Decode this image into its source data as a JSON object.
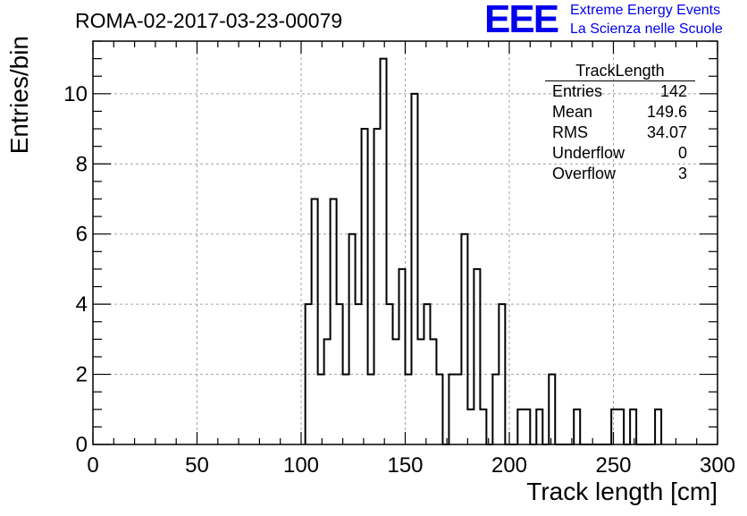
{
  "header": {
    "run_title": "ROMA-02-2017-03-23-00079",
    "logo_text": "EEE",
    "logo_line1": "Extreme Energy Events",
    "logo_line2": "La Scienza nelle Scuole"
  },
  "stats": {
    "title": "TrackLength",
    "rows": [
      {
        "label": "Entries",
        "value": "142"
      },
      {
        "label": "Mean",
        "value": "149.6"
      },
      {
        "label": "RMS",
        "value": "34.07"
      },
      {
        "label": "Underflow",
        "value": "0"
      },
      {
        "label": "Overflow",
        "value": "3"
      }
    ]
  },
  "chart_data": {
    "type": "bar",
    "style": "step-histogram",
    "xlabel": "Track length [cm]",
    "ylabel": "Entries/bin",
    "xlim": [
      0,
      300
    ],
    "ylim": [
      0,
      11.5
    ],
    "x_ticks": [
      0,
      50,
      100,
      150,
      200,
      250,
      300
    ],
    "y_ticks": [
      0,
      2,
      4,
      6,
      8,
      10
    ],
    "grid": true,
    "bin_width": 3,
    "bins": [
      {
        "x": 102,
        "count": 4
      },
      {
        "x": 105,
        "count": 7
      },
      {
        "x": 108,
        "count": 2
      },
      {
        "x": 111,
        "count": 3
      },
      {
        "x": 114,
        "count": 7
      },
      {
        "x": 117,
        "count": 4
      },
      {
        "x": 120,
        "count": 2
      },
      {
        "x": 123,
        "count": 6
      },
      {
        "x": 126,
        "count": 4
      },
      {
        "x": 129,
        "count": 9
      },
      {
        "x": 132,
        "count": 2
      },
      {
        "x": 135,
        "count": 9
      },
      {
        "x": 138,
        "count": 11
      },
      {
        "x": 141,
        "count": 4
      },
      {
        "x": 144,
        "count": 3
      },
      {
        "x": 147,
        "count": 5
      },
      {
        "x": 150,
        "count": 2
      },
      {
        "x": 153,
        "count": 10
      },
      {
        "x": 156,
        "count": 3
      },
      {
        "x": 159,
        "count": 4
      },
      {
        "x": 162,
        "count": 3
      },
      {
        "x": 165,
        "count": 2
      },
      {
        "x": 168,
        "count": 0
      },
      {
        "x": 171,
        "count": 2
      },
      {
        "x": 174,
        "count": 2
      },
      {
        "x": 177,
        "count": 6
      },
      {
        "x": 180,
        "count": 1
      },
      {
        "x": 183,
        "count": 5
      },
      {
        "x": 186,
        "count": 1
      },
      {
        "x": 189,
        "count": 0
      },
      {
        "x": 192,
        "count": 2
      },
      {
        "x": 195,
        "count": 4
      },
      {
        "x": 198,
        "count": 0
      },
      {
        "x": 201,
        "count": 0
      },
      {
        "x": 204,
        "count": 1
      },
      {
        "x": 207,
        "count": 1
      },
      {
        "x": 210,
        "count": 0
      },
      {
        "x": 213,
        "count": 1
      },
      {
        "x": 216,
        "count": 0
      },
      {
        "x": 219,
        "count": 2
      },
      {
        "x": 222,
        "count": 0
      },
      {
        "x": 225,
        "count": 0
      },
      {
        "x": 228,
        "count": 0
      },
      {
        "x": 231,
        "count": 1
      },
      {
        "x": 234,
        "count": 0
      },
      {
        "x": 237,
        "count": 0
      },
      {
        "x": 240,
        "count": 0
      },
      {
        "x": 243,
        "count": 0
      },
      {
        "x": 246,
        "count": 0
      },
      {
        "x": 249,
        "count": 1
      },
      {
        "x": 252,
        "count": 1
      },
      {
        "x": 255,
        "count": 0
      },
      {
        "x": 258,
        "count": 1
      },
      {
        "x": 261,
        "count": 0
      },
      {
        "x": 264,
        "count": 0
      },
      {
        "x": 267,
        "count": 0
      },
      {
        "x": 270,
        "count": 1
      }
    ]
  }
}
